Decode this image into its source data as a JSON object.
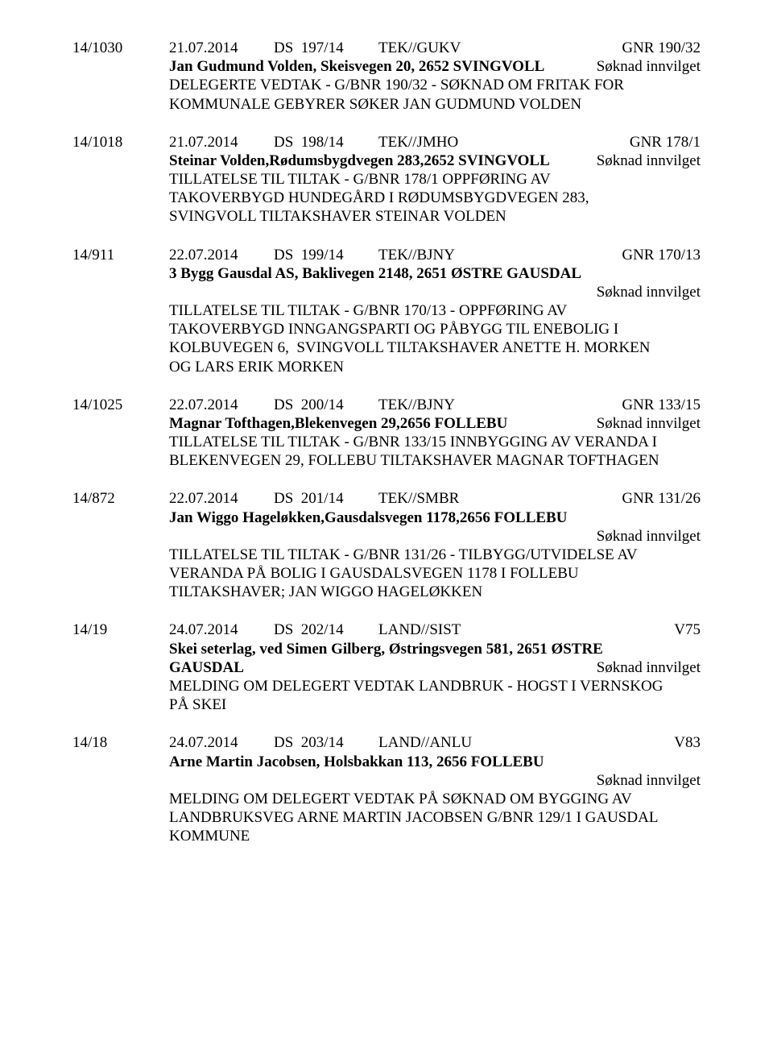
{
  "entries": [
    {
      "caseNo": "14/1030",
      "date": "21.07.2014",
      "docNo": "DS  197/14",
      "dept": "TEK//GUKV",
      "gnr": "GNR 190/32",
      "applicant": "Jan Gudmund Volden, Skeisvegen 20, 2652 SVINGVOLL",
      "status": "Søknad innvilget",
      "statusSameLine": true,
      "desc": "DELEGERTE VEDTAK - G/BNR 190/32 - SØKNAD OM FRITAK FOR\nKOMMUNALE GEBYRER SØKER JAN GUDMUND VOLDEN"
    },
    {
      "caseNo": "14/1018",
      "date": "21.07.2014",
      "docNo": "DS  198/14",
      "dept": "TEK//JMHO",
      "gnr": "GNR 178/1",
      "applicant": "Steinar Volden,Rødumsbygdvegen 283,2652 SVINGVOLL",
      "status": "Søknad innvilget",
      "statusSameLine": true,
      "desc": "TILLATELSE TIL TILTAK - G/BNR 178/1 OPPFØRING AV\nTAKOVERBYGD HUNDEGÅRD I RØDUMSBYGDVEGEN 283,\nSVINGVOLL TILTAKSHAVER STEINAR VOLDEN"
    },
    {
      "caseNo": "14/911",
      "date": "22.07.2014",
      "docNo": "DS  199/14",
      "dept": "TEK//BJNY",
      "gnr": "GNR 170/13",
      "applicant": "3 Bygg Gausdal AS, Baklivegen 2148, 2651 ØSTRE GAUSDAL",
      "status": "Søknad innvilget",
      "statusSameLine": false,
      "desc": "TILLATELSE TIL TILTAK - G/BNR 170/13 - OPPFØRING AV\nTAKOVERBYGD INNGANGSPARTI OG PÅBYGG TIL ENEBOLIG I\nKOLBUVEGEN 6,  SVINGVOLL TILTAKSHAVER ANETTE H. MORKEN\nOG LARS ERIK MORKEN"
    },
    {
      "caseNo": "14/1025",
      "date": "22.07.2014",
      "docNo": "DS  200/14",
      "dept": "TEK//BJNY",
      "gnr": "GNR 133/15",
      "applicant": "Magnar Tofthagen,Blekenvegen 29,2656 FOLLEBU",
      "status": "Søknad innvilget",
      "statusSameLine": true,
      "desc": "TILLATELSE TIL TILTAK - G/BNR 133/15 INNBYGGING AV VERANDA I\nBLEKENVEGEN 29, FOLLEBU TILTAKSHAVER MAGNAR TOFTHAGEN"
    },
    {
      "caseNo": "14/872",
      "date": "22.07.2014",
      "docNo": "DS  201/14",
      "dept": "TEK//SMBR",
      "gnr": "GNR 131/26",
      "applicant": "Jan Wiggo Hageløkken,Gausdalsvegen 1178,2656 FOLLEBU",
      "status": "Søknad innvilget",
      "statusSameLine": false,
      "desc": "TILLATELSE TIL TILTAK - G/BNR 131/26 - TILBYGG/UTVIDELSE AV\nVERANDA PÅ BOLIG I GAUSDALSVEGEN 1178 I FOLLEBU\nTILTAKSHAVER; JAN WIGGO HAGELØKKEN"
    },
    {
      "caseNo": "14/19",
      "date": "24.07.2014",
      "docNo": "DS  202/14",
      "dept": "LAND//SIST",
      "gnr": "V75",
      "applicant": "Skei seterlag, ved Simen Gilberg, Østringsvegen 581, 2651 ØSTRE\nGAUSDAL",
      "status": "Søknad innvilget",
      "statusSameLine": true,
      "applicantMultiline": true,
      "desc": "MELDING OM DELEGERT VEDTAK LANDBRUK - HOGST I VERNSKOG\nPÅ SKEI"
    },
    {
      "caseNo": "14/18",
      "date": "24.07.2014",
      "docNo": "DS  203/14",
      "dept": "LAND//ANLU",
      "gnr": "V83",
      "applicant": "Arne Martin Jacobsen, Holsbakkan 113, 2656 FOLLEBU",
      "status": "Søknad innvilget",
      "statusSameLine": false,
      "desc": "MELDING OM DELEGERT VEDTAK PÅ SØKNAD OM BYGGING AV\nLANDBRUKSVEG ARNE MARTIN JACOBSEN G/BNR 129/1 I GAUSDAL\nKOMMUNE"
    }
  ]
}
